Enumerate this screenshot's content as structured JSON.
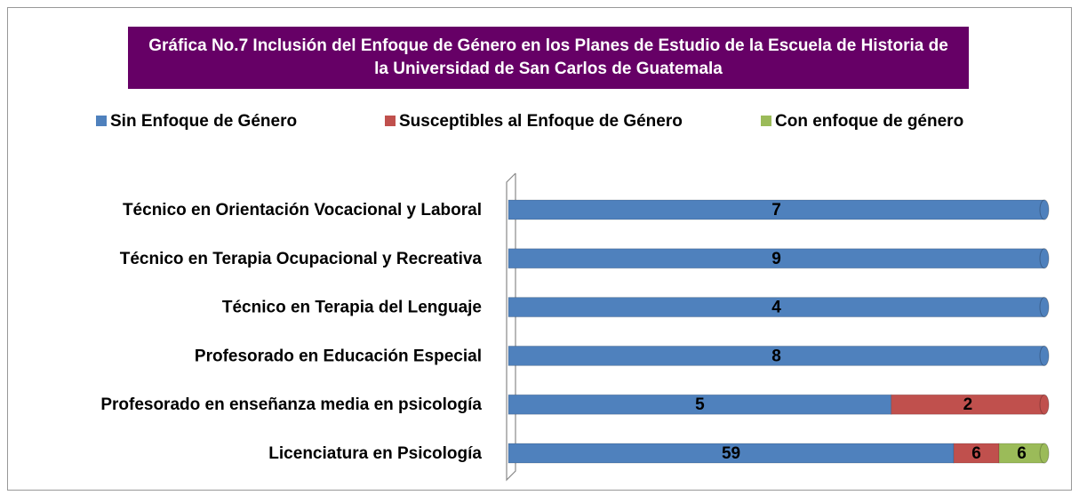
{
  "chart_data": {
    "type": "bar",
    "orientation": "horizontal",
    "stacked": "percent",
    "title": "Gráfica No.7 Inclusión del Enfoque de Género en los Planes de Estudio de la Escuela de Historia de la Universidad de San Carlos de Guatemala",
    "categories": [
      "Técnico en Orientación Vocacional y Laboral",
      "Técnico en Terapia Ocupacional y Recreativa",
      "Técnico en Terapia del Lenguaje",
      "Profesorado en Educación Especial",
      "Profesorado en enseñanza media en psicología",
      "Licenciatura en Psicología"
    ],
    "series": [
      {
        "name": "Sin Enfoque de Género",
        "color": "#4f81bd",
        "values": [
          7,
          9,
          4,
          8,
          5,
          59
        ]
      },
      {
        "name": "Susceptibles al Enfoque de Género",
        "color": "#c0504d",
        "values": [
          0,
          0,
          0,
          0,
          2,
          6
        ]
      },
      {
        "name": "Con enfoque de género",
        "color": "#9bbb59",
        "values": [
          0,
          0,
          0,
          0,
          0,
          6
        ]
      }
    ],
    "legend": "top"
  }
}
